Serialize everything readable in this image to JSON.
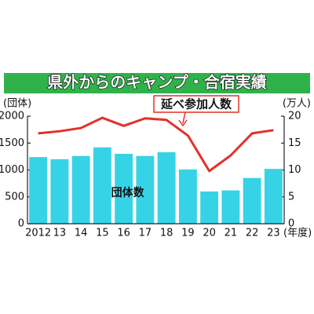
{
  "chart_data": {
    "type": "bar",
    "title": "県外からのキャンプ・合宿実績",
    "y_label": "(団体)",
    "y2_label": "(万人)",
    "x_label": "(年度)",
    "categories": [
      "2012",
      "13",
      "14",
      "15",
      "16",
      "17",
      "18",
      "19",
      "20",
      "21",
      "22",
      "23"
    ],
    "series": [
      {
        "name": "団体数",
        "type": "bar",
        "color": "#36d3e6",
        "values": [
          1240,
          1200,
          1260,
          1420,
          1300,
          1260,
          1330,
          1010,
          600,
          620,
          850,
          1020
        ]
      },
      {
        "name": "延べ参加人数",
        "type": "line",
        "axis": "y2",
        "color": "#e3302b",
        "values": [
          16.8,
          17.2,
          17.8,
          19.7,
          18.2,
          19.6,
          19.3,
          16.4,
          9.8,
          12.7,
          16.8,
          17.4
        ]
      }
    ],
    "ylim": [
      0,
      2000
    ],
    "yticks": [
      0,
      500,
      1000,
      1500,
      2000
    ],
    "y2lim": [
      0,
      20
    ],
    "y2ticks": [
      0,
      5,
      10,
      15,
      20
    ],
    "grid": false
  }
}
